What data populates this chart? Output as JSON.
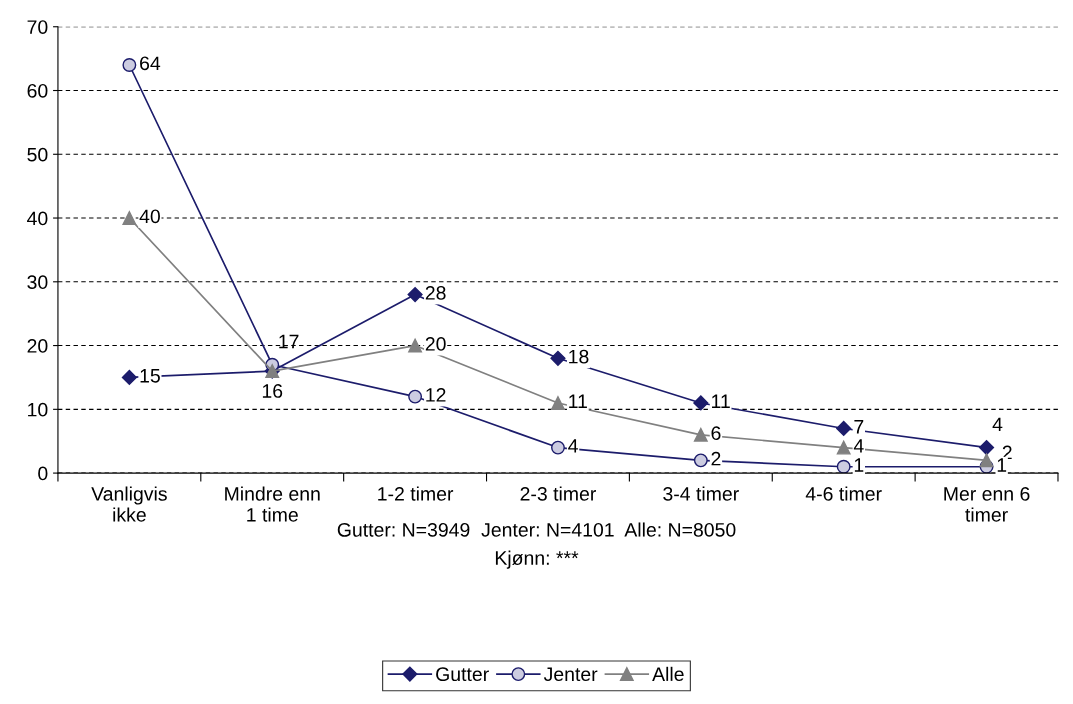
{
  "chart_data": {
    "type": "line",
    "categories": [
      "Vanligvis ikke",
      "Mindre enn 1 time",
      "1-2 timer",
      "2-3 timer",
      "3-4 timer",
      "4-6 timer",
      "Mer enn 6 timer"
    ],
    "series": [
      {
        "name": "Gutter",
        "color": "#1c1c6b",
        "marker": "diamond",
        "values": [
          15,
          16,
          28,
          18,
          11,
          7,
          4
        ],
        "value_labels": [
          "15",
          "16",
          "28",
          "18",
          "11",
          "7",
          "4"
        ]
      },
      {
        "name": "Jenter",
        "color": "#1c1c6b",
        "marker": "circle",
        "values": [
          64,
          17,
          12,
          4,
          2,
          1,
          1
        ],
        "value_labels": [
          "64",
          "17",
          "12",
          "4",
          "2",
          "1",
          "1"
        ]
      },
      {
        "name": "Alle",
        "color": "#808080",
        "marker": "triangle",
        "values": [
          40,
          16,
          20,
          11,
          6,
          4,
          2
        ],
        "value_labels": [
          "40",
          null,
          "20",
          "11",
          "6",
          "4",
          "2"
        ]
      }
    ],
    "ylim": [
      0,
      70
    ],
    "yticks": [
      0,
      10,
      20,
      30,
      40,
      50,
      60,
      70
    ],
    "grid": "y",
    "line_style": "solid",
    "legend": "bottom",
    "annotations": [
      "Gutter: N=3949  Jenter: N=4101  Alle: N=8050",
      "Kjønn: ***"
    ]
  }
}
